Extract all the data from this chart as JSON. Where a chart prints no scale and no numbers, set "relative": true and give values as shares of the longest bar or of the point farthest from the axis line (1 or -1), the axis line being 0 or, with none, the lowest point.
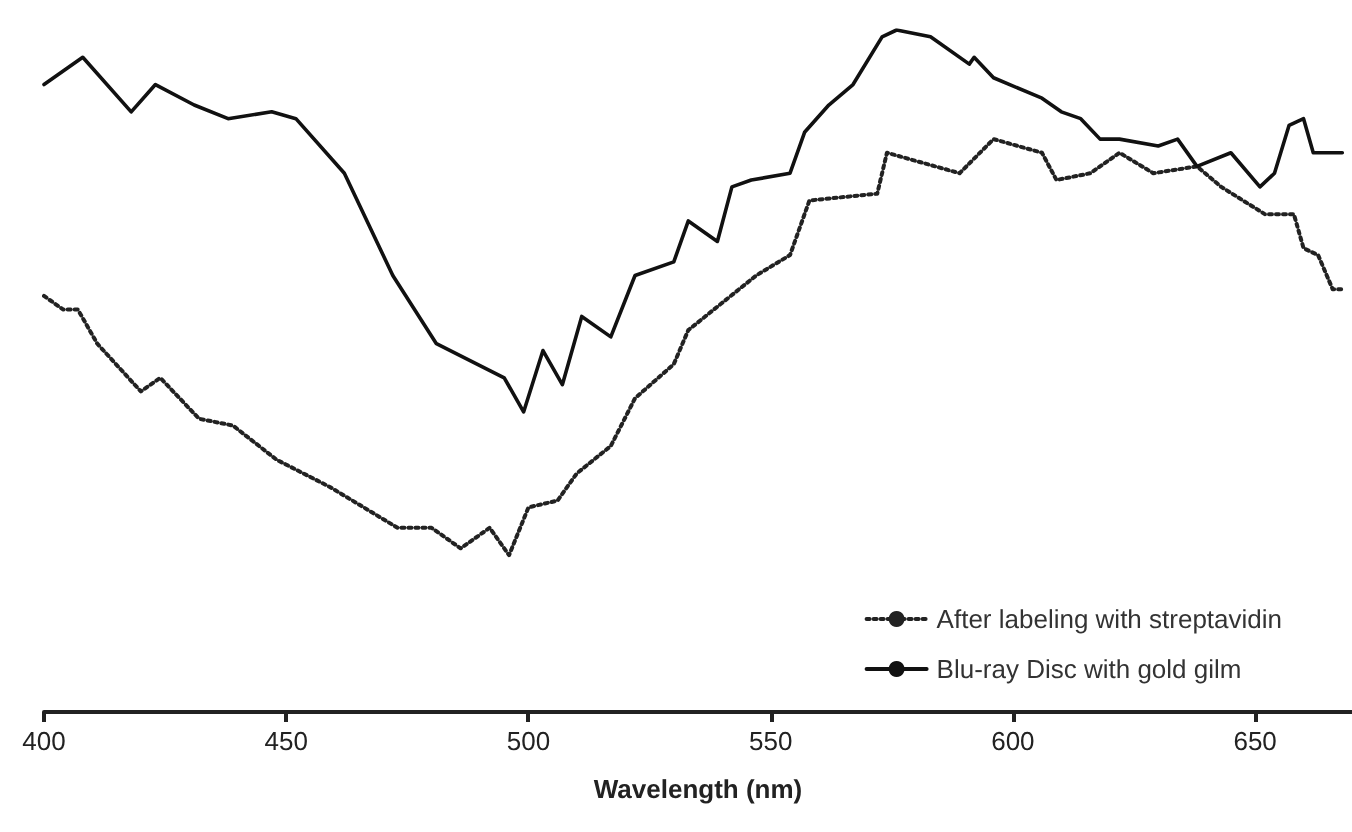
{
  "chart_data": {
    "type": "line",
    "relative": true,
    "xlabel": "Wavelength (nm)",
    "xlim": [
      400,
      670
    ],
    "xticks": [
      400,
      450,
      500,
      550,
      600,
      650
    ],
    "legend": "bottom right",
    "marker": "none",
    "series": [
      {
        "name": "After labeling with streptavidin",
        "color": "#222222",
        "line_style": "dotted",
        "x": [
          400,
          404,
          407,
          411,
          420,
          424,
          432,
          439,
          448,
          459,
          473,
          480,
          486,
          492,
          496,
          500,
          506,
          510,
          517,
          522,
          530,
          533,
          540,
          547,
          554,
          558,
          572,
          574,
          584,
          589,
          596,
          606,
          609,
          616,
          622,
          629,
          638,
          643,
          652,
          658,
          660,
          663,
          666,
          668
        ],
        "values": [
          0.61,
          0.59,
          0.59,
          0.54,
          0.47,
          0.49,
          0.43,
          0.42,
          0.37,
          0.33,
          0.27,
          0.27,
          0.24,
          0.27,
          0.23,
          0.3,
          0.31,
          0.35,
          0.39,
          0.46,
          0.51,
          0.56,
          0.6,
          0.64,
          0.67,
          0.75,
          0.76,
          0.82,
          0.8,
          0.79,
          0.84,
          0.82,
          0.78,
          0.79,
          0.82,
          0.79,
          0.8,
          0.77,
          0.73,
          0.73,
          0.68,
          0.67,
          0.62,
          0.62
        ]
      },
      {
        "name": "Blu-ray Disc with gold gilm",
        "color": "#111111",
        "line_style": "solid",
        "x": [
          400,
          408,
          418,
          423,
          431,
          438,
          447,
          452,
          462,
          472,
          481,
          495,
          499,
          503,
          507,
          511,
          517,
          522,
          530,
          533,
          539,
          542,
          546,
          554,
          557,
          562,
          567,
          573,
          576,
          583,
          591,
          592,
          596,
          606,
          610,
          614,
          618,
          622,
          630,
          634,
          638,
          645,
          651,
          654,
          657,
          660,
          662,
          668
        ],
        "values": [
          0.92,
          0.96,
          0.88,
          0.92,
          0.89,
          0.87,
          0.88,
          0.87,
          0.79,
          0.64,
          0.54,
          0.49,
          0.44,
          0.53,
          0.48,
          0.58,
          0.55,
          0.64,
          0.66,
          0.72,
          0.69,
          0.77,
          0.78,
          0.79,
          0.85,
          0.89,
          0.92,
          0.99,
          1.0,
          0.99,
          0.95,
          0.96,
          0.93,
          0.9,
          0.88,
          0.87,
          0.84,
          0.84,
          0.83,
          0.84,
          0.8,
          0.82,
          0.77,
          0.79,
          0.86,
          0.87,
          0.82,
          0.82
        ]
      }
    ]
  }
}
